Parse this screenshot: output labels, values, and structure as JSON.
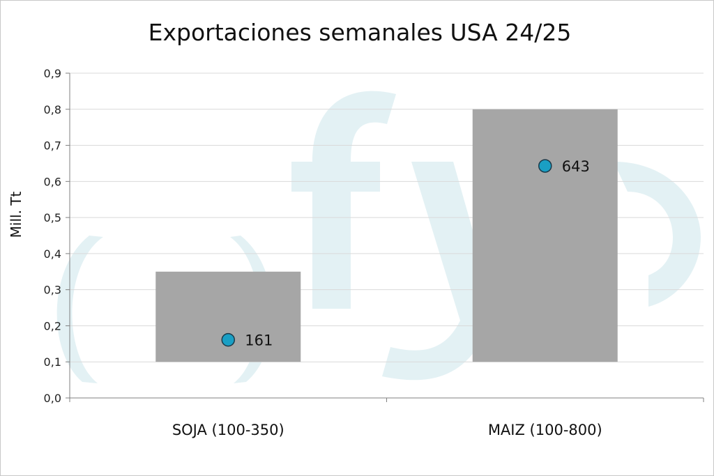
{
  "chart_data": {
    "type": "bar",
    "title": "Exportaciones semanales USA 24/25",
    "ylabel": "Mill. Tt",
    "xlabel": "",
    "ylim": [
      0,
      0.9
    ],
    "yticks": [
      "0,0",
      "0,1",
      "0,2",
      "0,3",
      "0,4",
      "0,5",
      "0,6",
      "0,7",
      "0,8",
      "0,9"
    ],
    "grid": true,
    "categories": [
      "SOJA (100-350)",
      "MAIZ (100-800)"
    ],
    "ranges": [
      {
        "low": 0.1,
        "high": 0.35
      },
      {
        "low": 0.1,
        "high": 0.8
      }
    ],
    "points": [
      {
        "value": 0.161,
        "label": "161"
      },
      {
        "value": 0.643,
        "label": "643"
      }
    ],
    "colors": {
      "range_bar": "#a6a6a6",
      "point_fill": "#1a9fc4",
      "point_stroke": "#1b3a4a",
      "gridline": "#d9d9d9",
      "axis": "#7f7f7f",
      "watermark": "#e3f1f4"
    },
    "watermark": "fyo"
  }
}
